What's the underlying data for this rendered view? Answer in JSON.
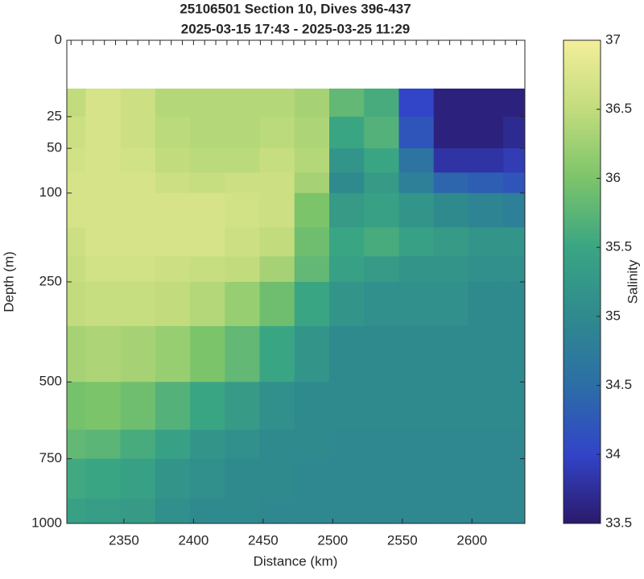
{
  "chart_data": {
    "type": "filled-section",
    "title": "25106501 Section 10, Dives 396-437",
    "subtitle": "2025-03-15 17:43 - 2025-03-25 11:29",
    "x_label": "Distance (km)",
    "y_label": "Depth (m)",
    "colorbar_label": "Salinity",
    "xlim": [
      2309,
      2638
    ],
    "xticks": [
      2350,
      2400,
      2450,
      2500,
      2550,
      2600
    ],
    "ylim": [
      0,
      1000
    ],
    "yticks": [
      0,
      25,
      50,
      100,
      250,
      500,
      750,
      1000
    ],
    "yscale": "sqrt",
    "y_reversed": true,
    "dive_ticks": [
      2312,
      2320,
      2328,
      2336,
      2344,
      2352,
      2360,
      2368,
      2376,
      2384,
      2392,
      2400,
      2408,
      2416,
      2424,
      2432,
      2440,
      2448,
      2456,
      2464,
      2472,
      2480,
      2488,
      2496,
      2504,
      2512,
      2520,
      2528,
      2536,
      2544,
      2552,
      2560,
      2568,
      2576,
      2584,
      2592,
      2600,
      2608,
      2616,
      2624,
      2632
    ],
    "x": [
      2310,
      2335,
      2360,
      2385,
      2410,
      2435,
      2460,
      2485,
      2510,
      2535,
      2560,
      2585,
      2610,
      2635
    ],
    "depth_edges": [
      10,
      25,
      50,
      75,
      100,
      150,
      200,
      250,
      350,
      500,
      650,
      750,
      900,
      1000
    ],
    "z": [
      [
        36.5,
        36.7,
        36.6,
        36.4,
        36.4,
        36.4,
        36.4,
        36.3,
        35.8,
        35.6,
        34.0,
        33.6,
        33.6,
        33.6
      ],
      [
        36.6,
        36.7,
        36.6,
        36.45,
        36.4,
        36.4,
        36.45,
        36.35,
        35.5,
        35.7,
        34.2,
        33.6,
        33.6,
        33.7
      ],
      [
        36.65,
        36.7,
        36.65,
        36.5,
        36.45,
        36.45,
        36.55,
        36.4,
        35.2,
        35.5,
        34.6,
        33.8,
        33.8,
        33.9
      ],
      [
        36.7,
        36.7,
        36.7,
        36.6,
        36.55,
        36.6,
        36.6,
        36.3,
        35.0,
        35.3,
        34.8,
        34.4,
        34.3,
        34.2
      ],
      [
        36.7,
        36.7,
        36.7,
        36.7,
        36.7,
        36.65,
        36.6,
        36.0,
        35.3,
        35.4,
        35.2,
        35.0,
        34.9,
        34.8
      ],
      [
        36.6,
        36.7,
        36.7,
        36.7,
        36.7,
        36.6,
        36.5,
        35.9,
        35.5,
        35.6,
        35.4,
        35.3,
        35.2,
        35.2
      ],
      [
        36.55,
        36.65,
        36.65,
        36.6,
        36.55,
        36.5,
        36.3,
        35.8,
        35.4,
        35.3,
        35.2,
        35.2,
        35.1,
        35.1
      ],
      [
        36.5,
        36.55,
        36.55,
        36.5,
        36.4,
        36.2,
        35.9,
        35.5,
        35.2,
        35.1,
        35.1,
        35.1,
        35.0,
        35.0
      ],
      [
        36.3,
        36.35,
        36.3,
        36.2,
        36.0,
        35.8,
        35.5,
        35.2,
        35.0,
        35.0,
        35.0,
        35.0,
        35.0,
        35.0
      ],
      [
        35.95,
        36.0,
        35.9,
        35.7,
        35.5,
        35.3,
        35.1,
        35.0,
        35.0,
        35.0,
        35.0,
        35.0,
        35.0,
        35.0
      ],
      [
        35.8,
        35.75,
        35.6,
        35.4,
        35.2,
        35.1,
        35.0,
        35.0,
        34.95,
        34.95,
        34.95,
        34.95,
        34.95,
        34.95
      ],
      [
        35.55,
        35.5,
        35.4,
        35.2,
        35.1,
        35.0,
        35.0,
        34.95,
        34.95,
        34.95,
        34.95,
        34.95,
        34.95,
        34.95
      ],
      [
        35.4,
        35.35,
        35.3,
        35.1,
        35.0,
        35.0,
        34.95,
        34.95,
        34.95,
        34.95,
        34.95,
        34.95,
        34.95,
        34.95
      ]
    ],
    "clim": [
      33.5,
      37
    ],
    "cticks": [
      33.5,
      34,
      34.5,
      35,
      35.5,
      36,
      36.5,
      37
    ],
    "colormap": [
      "#2b1a6b",
      "#3244c8",
      "#2c6ea6",
      "#2f8a8e",
      "#3aa583",
      "#7cc46a",
      "#c2dc7d",
      "#f3ee9a"
    ]
  }
}
